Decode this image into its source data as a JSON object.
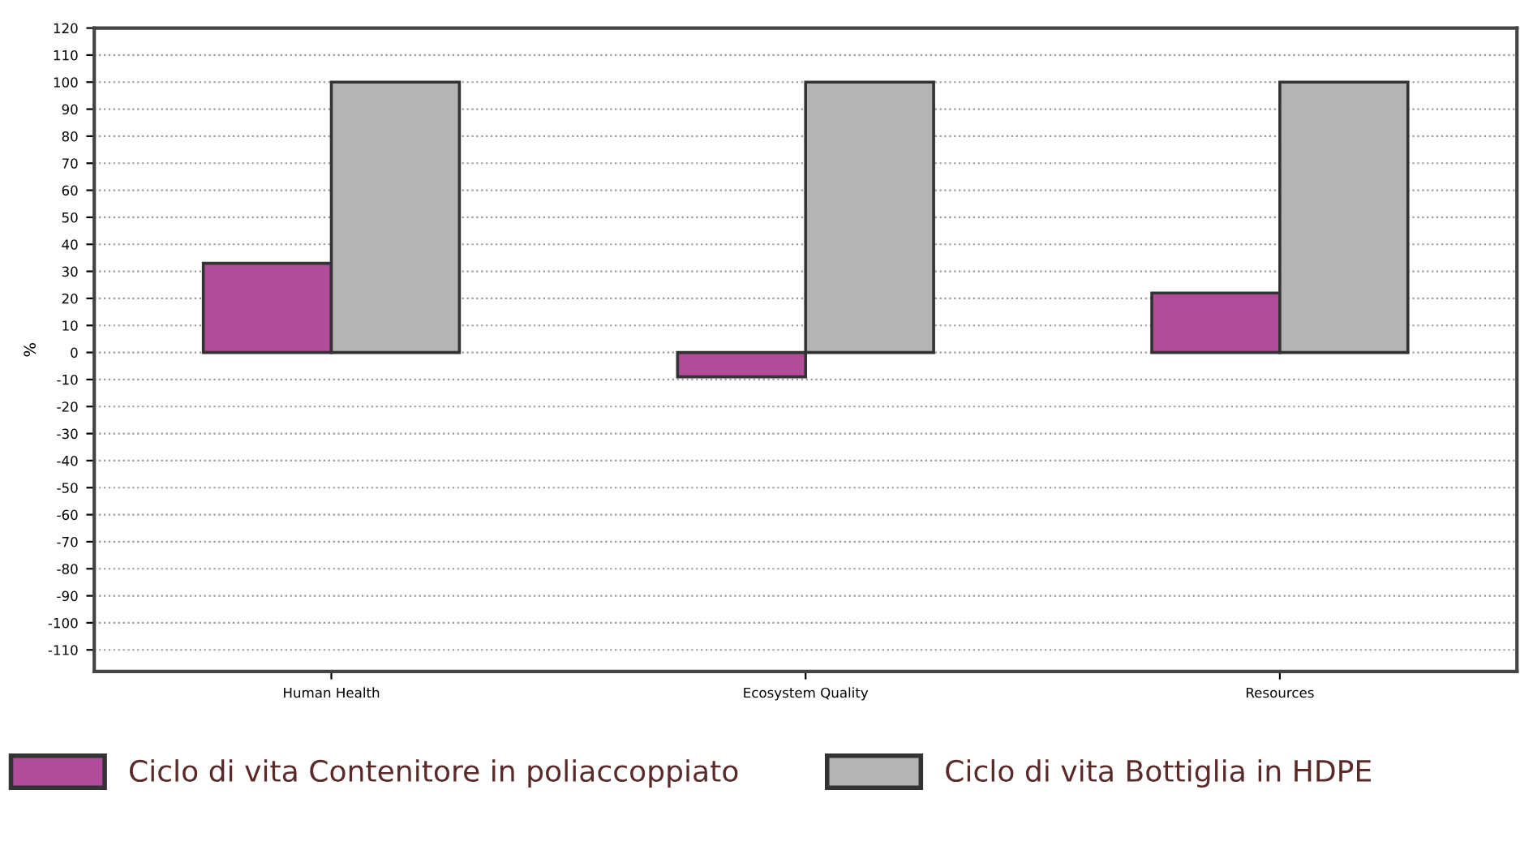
{
  "chart_data": {
    "type": "bar",
    "ylabel": "%",
    "categories": [
      "Human Health",
      "Ecosystem Quality",
      "Resources"
    ],
    "series": [
      {
        "name": "Ciclo di vita Contenitore in poliaccoppiato",
        "color": "#b04c9a",
        "values": [
          33,
          -9,
          22
        ]
      },
      {
        "name": "Ciclo di vita Bottiglia in HDPE",
        "color": "#b4b4b4",
        "values": [
          100,
          100,
          100
        ]
      }
    ],
    "ylim": [
      -118,
      120
    ],
    "yticks": [
      -110,
      -100,
      -90,
      -80,
      -70,
      -60,
      -50,
      -40,
      -30,
      -20,
      -10,
      0,
      10,
      20,
      30,
      40,
      50,
      60,
      70,
      80,
      90,
      100,
      110,
      120
    ],
    "grid": "y",
    "legend": "bottom"
  }
}
